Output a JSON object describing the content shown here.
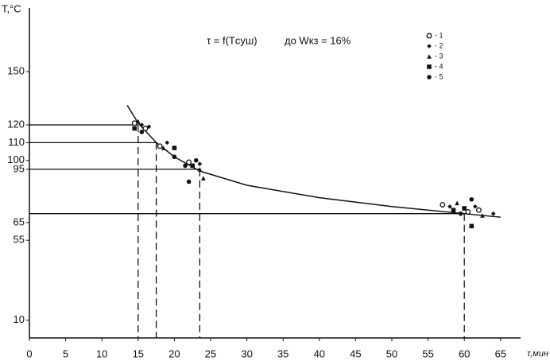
{
  "chart_data": {
    "type": "scatter",
    "title": "τ = f(Tсуш)",
    "annotation": "до Wкз = 16%",
    "y_label": "T,°C",
    "x_label": "τ,мин",
    "xlim": [
      0,
      71
    ],
    "ylim": [
      0,
      186
    ],
    "xticks": [
      0,
      5,
      10,
      15,
      20,
      25,
      30,
      35,
      40,
      45,
      50,
      55,
      60,
      65
    ],
    "yticks": [
      10,
      55,
      65,
      95,
      100,
      110,
      120,
      150
    ],
    "legend": "top-right",
    "series": [
      {
        "name": "- 1",
        "marker": "circle",
        "color": "#111111",
        "x": [
          14.5,
          16,
          18,
          22,
          57,
          60.5,
          62
        ],
        "y": [
          121,
          118,
          108,
          99,
          75,
          71,
          72
        ]
      },
      {
        "name": "- 2",
        "marker": "diamond",
        "color": "#111111",
        "x": [
          15.5,
          16.5,
          19,
          23.5,
          58,
          61.5,
          64
        ],
        "y": [
          120,
          119,
          110,
          98,
          74,
          74,
          70
        ]
      },
      {
        "name": "- 3",
        "marker": "triangle",
        "color": "#111111",
        "x": [
          15,
          18.5,
          23.5,
          24,
          59,
          62.5
        ],
        "y": [
          122,
          107,
          95,
          90,
          76,
          69
        ]
      },
      {
        "name": "- 4",
        "marker": "square",
        "color": "#111111",
        "x": [
          14.5,
          20,
          22.5,
          58.5,
          60,
          61
        ],
        "y": [
          118,
          107,
          97,
          72,
          73,
          63
        ]
      },
      {
        "name": "- 5",
        "marker": "dot",
        "color": "#111111",
        "x": [
          15.5,
          20,
          21.5,
          22,
          23,
          59.5,
          61
        ],
        "y": [
          116,
          102,
          97,
          88,
          100,
          70,
          78
        ]
      }
    ],
    "curve": {
      "x": [
        13.5,
        15,
        17.5,
        20,
        23.5,
        30,
        40,
        50,
        60,
        65
      ],
      "y": [
        131,
        121,
        110,
        102,
        94,
        86,
        79,
        74,
        70,
        68
      ]
    },
    "reference_lines": [
      {
        "x": 15,
        "y": 120
      },
      {
        "x": 17.5,
        "y": 110
      },
      {
        "x": 23.5,
        "y": 95
      },
      {
        "x": 60,
        "y": 70
      }
    ]
  }
}
